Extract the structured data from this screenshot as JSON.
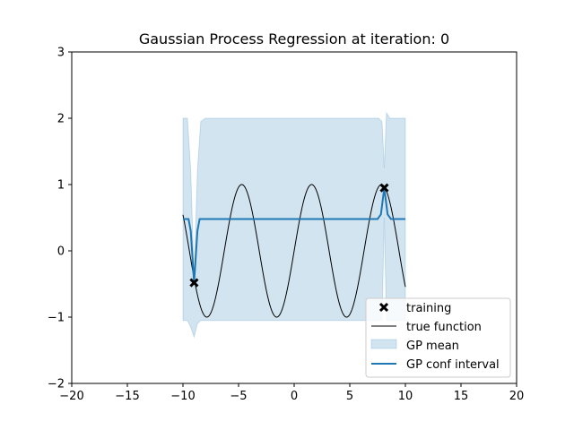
{
  "chart_data": {
    "type": "line",
    "title": "Gaussian Process Regression at iteration: 0",
    "xlabel": "",
    "ylabel": "",
    "xlim": [
      -20,
      20
    ],
    "ylim": [
      -2,
      3
    ],
    "x_ticks": [
      -20,
      -15,
      -10,
      -5,
      0,
      5,
      10,
      15,
      20
    ],
    "x_tick_labels": [
      "−20",
      "−15",
      "−10",
      "−5",
      "0",
      "5",
      "10",
      "15",
      "20"
    ],
    "y_ticks": [
      -2,
      -1,
      0,
      1,
      2,
      3
    ],
    "y_tick_labels": [
      "−2",
      "−1",
      "0",
      "1",
      "2",
      "3"
    ],
    "grid": false,
    "legend_position": "lower-right",
    "colors": {
      "gp_line": "#1f77b4",
      "band": "#1f77b4",
      "true_function": "#000000",
      "training": "#000000"
    },
    "training_points": {
      "x": [
        -9.0,
        8.1
      ],
      "y": [
        -0.48,
        0.95
      ]
    },
    "true_function": {
      "name": "true function",
      "x_range": [
        -10,
        10
      ],
      "formula": "sin(x)"
    },
    "gp_line": {
      "name": "GP conf interval",
      "x": [
        -10,
        -9.5,
        -9.3,
        -9.0,
        -8.7,
        -8.5,
        -8.0,
        7.5,
        7.8,
        8.1,
        8.4,
        8.7,
        10
      ],
      "y": [
        0.48,
        0.48,
        0.3,
        -0.48,
        0.3,
        0.48,
        0.48,
        0.48,
        0.55,
        0.95,
        0.55,
        0.48,
        0.48
      ]
    },
    "gp_band": {
      "name": "GP mean",
      "x": [
        -10,
        -9.6,
        -9.3,
        -9.0,
        -8.7,
        -8.4,
        -8.0,
        7.6,
        7.9,
        8.1,
        8.3,
        8.6,
        10
      ],
      "upper": [
        2.0,
        2.0,
        1.2,
        -0.4,
        1.2,
        1.95,
        2.0,
        2.0,
        1.95,
        1.25,
        2.08,
        2.0,
        2.0
      ],
      "lower": [
        -1.05,
        -1.05,
        -1.15,
        -1.3,
        -1.1,
        -1.05,
        -1.05,
        -1.05,
        -1.05,
        0.5,
        -1.05,
        -1.05,
        -1.05
      ]
    },
    "legend": [
      "training",
      "true function",
      "GP mean",
      "GP conf interval"
    ]
  }
}
